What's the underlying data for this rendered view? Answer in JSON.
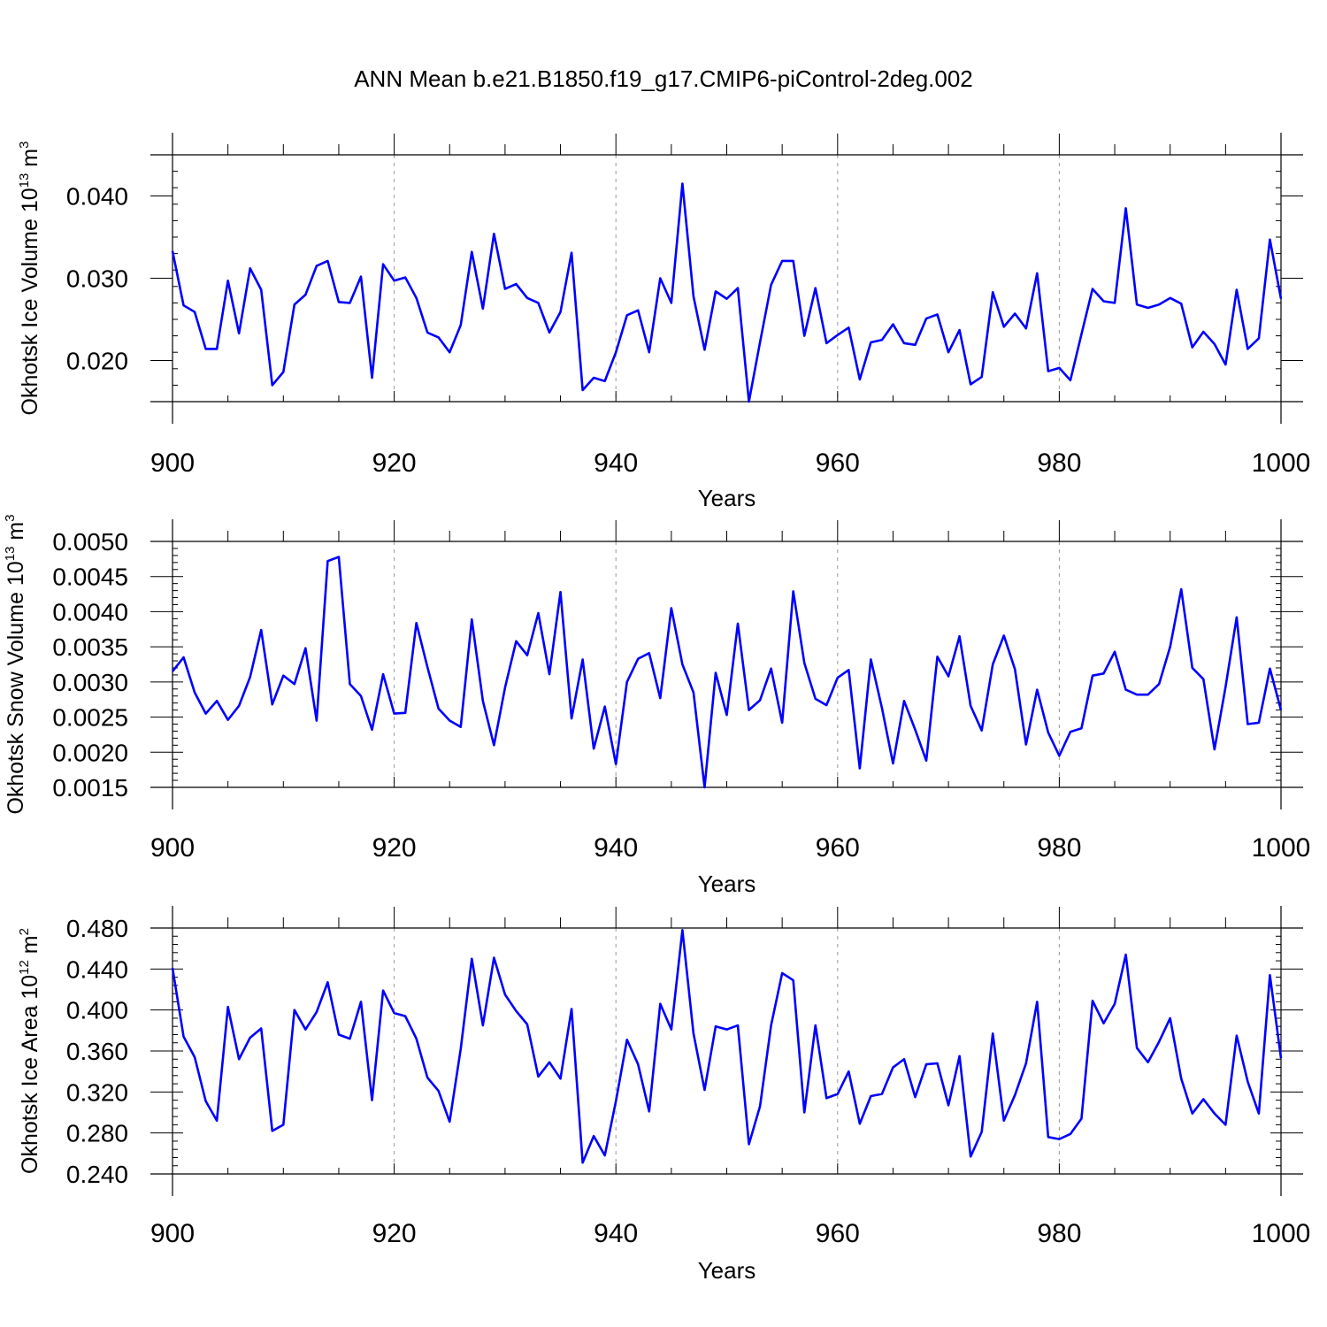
{
  "title": "ANN Mean b.e21.B1850.f19_g17.CMIP6-piControl-2deg.002",
  "colors": {
    "line": "#0000ff",
    "axes": "#000000",
    "grid": "#999999"
  },
  "chart_data": [
    {
      "type": "line",
      "ylabel": {
        "main": "Okhotsk Ice Volume 10",
        "sup": "13",
        "unit": " m",
        "unit_sup": "3"
      },
      "xlabel": "Years",
      "xlim": [
        900,
        1000
      ],
      "ylim": [
        0.015,
        0.045
      ],
      "yticks": [
        0.02,
        0.03,
        0.04
      ],
      "ytick_labels": [
        "0.020",
        "0.030",
        "0.040"
      ],
      "xticks": [
        900,
        920,
        940,
        960,
        980,
        1000
      ],
      "xtick_labels": [
        "900",
        "920",
        "940",
        "960",
        "980",
        "1000"
      ],
      "grid": "vertical dashed at x ticks",
      "series": [
        {
          "color": "#0000ff",
          "x_start": 900,
          "x_step": 1,
          "values": [
            0.0333,
            0.0267,
            0.0259,
            0.0214,
            0.0214,
            0.0297,
            0.0233,
            0.0312,
            0.0286,
            0.017,
            0.0186,
            0.0268,
            0.028,
            0.0315,
            0.0321,
            0.0271,
            0.027,
            0.0302,
            0.0179,
            0.0317,
            0.0297,
            0.0301,
            0.0276,
            0.0234,
            0.0228,
            0.021,
            0.0243,
            0.0332,
            0.0263,
            0.0354,
            0.0287,
            0.0293,
            0.0276,
            0.027,
            0.0234,
            0.0259,
            0.0331,
            0.0164,
            0.0179,
            0.0175,
            0.021,
            0.0255,
            0.0261,
            0.021,
            0.03,
            0.027,
            0.0415,
            0.0278,
            0.0213,
            0.0284,
            0.0275,
            0.0288,
            0.015,
            0.0222,
            0.0292,
            0.0321,
            0.0321,
            0.023,
            0.0288,
            0.0221,
            0.0231,
            0.024,
            0.0177,
            0.0222,
            0.0225,
            0.0244,
            0.0221,
            0.0219,
            0.0251,
            0.0256,
            0.021,
            0.0237,
            0.0171,
            0.018,
            0.0283,
            0.0241,
            0.0257,
            0.0239,
            0.0306,
            0.0187,
            0.0191,
            0.0176,
            0.0232,
            0.0287,
            0.0272,
            0.027,
            0.0385,
            0.0268,
            0.0264,
            0.0268,
            0.0276,
            0.0269,
            0.0216,
            0.0235,
            0.022,
            0.0195,
            0.0286,
            0.0214,
            0.0227,
            0.0347,
            0.0275
          ]
        }
      ]
    },
    {
      "type": "line",
      "ylabel": {
        "main": "Okhotsk Snow Volume 10",
        "sup": "13",
        "unit": " m",
        "unit_sup": "3"
      },
      "xlabel": "Years",
      "xlim": [
        900,
        1000
      ],
      "ylim": [
        0.0015,
        0.005
      ],
      "yticks": [
        0.0015,
        0.002,
        0.0025,
        0.003,
        0.0035,
        0.004,
        0.0045,
        0.005
      ],
      "ytick_labels": [
        "0.0015",
        "0.0020",
        "0.0025",
        "0.0030",
        "0.0035",
        "0.0040",
        "0.0045",
        "0.0050"
      ],
      "xticks": [
        900,
        920,
        940,
        960,
        980,
        1000
      ],
      "xtick_labels": [
        "900",
        "920",
        "940",
        "960",
        "980",
        "1000"
      ],
      "grid": "vertical dashed at x ticks",
      "series": [
        {
          "color": "#0000ff",
          "x_start": 900,
          "x_step": 1,
          "values": [
            0.00315,
            0.00335,
            0.00285,
            0.00255,
            0.00273,
            0.00246,
            0.00266,
            0.00307,
            0.00374,
            0.00268,
            0.00309,
            0.00297,
            0.00348,
            0.00245,
            0.00472,
            0.00478,
            0.00297,
            0.0028,
            0.00232,
            0.00311,
            0.00255,
            0.00256,
            0.00384,
            0.00321,
            0.00262,
            0.00245,
            0.00236,
            0.00389,
            0.00273,
            0.0021,
            0.00292,
            0.00358,
            0.00338,
            0.00398,
            0.00311,
            0.00428,
            0.00248,
            0.00332,
            0.00205,
            0.00265,
            0.00183,
            0.003,
            0.00333,
            0.00341,
            0.00277,
            0.00405,
            0.00325,
            0.00285,
            0.0015,
            0.00313,
            0.00253,
            0.00383,
            0.0026,
            0.00274,
            0.00319,
            0.00242,
            0.00429,
            0.00327,
            0.00276,
            0.00267,
            0.00306,
            0.00317,
            0.00177,
            0.00332,
            0.00263,
            0.00184,
            0.00273,
            0.00232,
            0.00188,
            0.00336,
            0.00308,
            0.00365,
            0.00266,
            0.00231,
            0.00325,
            0.00366,
            0.00318,
            0.00211,
            0.00289,
            0.00228,
            0.00195,
            0.00229,
            0.00234,
            0.00309,
            0.00312,
            0.00343,
            0.00289,
            0.00282,
            0.00282,
            0.00297,
            0.0035,
            0.00432,
            0.0032,
            0.00304,
            0.00204,
            0.00293,
            0.00392,
            0.0024,
            0.00242,
            0.00319,
            0.0026
          ]
        }
      ]
    },
    {
      "type": "line",
      "ylabel": {
        "main": "Okhotsk Ice Area 10",
        "sup": "12",
        "unit": " m",
        "unit_sup": "2"
      },
      "xlabel": "Years",
      "xlim": [
        900,
        1000
      ],
      "ylim": [
        0.24,
        0.48
      ],
      "yticks": [
        0.24,
        0.28,
        0.32,
        0.36,
        0.4,
        0.44,
        0.48
      ],
      "ytick_labels": [
        "0.240",
        "0.280",
        "0.320",
        "0.360",
        "0.400",
        "0.440",
        "0.480"
      ],
      "xticks": [
        900,
        920,
        940,
        960,
        980,
        1000
      ],
      "xtick_labels": [
        "900",
        "920",
        "940",
        "960",
        "980",
        "1000"
      ],
      "grid": "vertical dashed at x ticks",
      "series": [
        {
          "color": "#0000ff",
          "x_start": 900,
          "x_step": 1,
          "values": [
            0.441,
            0.374,
            0.354,
            0.311,
            0.292,
            0.403,
            0.352,
            0.373,
            0.382,
            0.282,
            0.288,
            0.4,
            0.381,
            0.398,
            0.427,
            0.376,
            0.372,
            0.408,
            0.312,
            0.419,
            0.397,
            0.394,
            0.372,
            0.334,
            0.321,
            0.291,
            0.362,
            0.45,
            0.385,
            0.451,
            0.415,
            0.399,
            0.386,
            0.335,
            0.349,
            0.333,
            0.401,
            0.251,
            0.277,
            0.258,
            0.311,
            0.371,
            0.347,
            0.301,
            0.406,
            0.381,
            0.478,
            0.377,
            0.322,
            0.384,
            0.381,
            0.385,
            0.269,
            0.306,
            0.385,
            0.436,
            0.429,
            0.3,
            0.385,
            0.314,
            0.318,
            0.34,
            0.289,
            0.316,
            0.318,
            0.344,
            0.352,
            0.315,
            0.347,
            0.348,
            0.307,
            0.355,
            0.257,
            0.281,
            0.377,
            0.292,
            0.317,
            0.348,
            0.408,
            0.276,
            0.274,
            0.279,
            0.294,
            0.409,
            0.387,
            0.406,
            0.454,
            0.363,
            0.349,
            0.369,
            0.392,
            0.333,
            0.299,
            0.313,
            0.299,
            0.288,
            0.375,
            0.33,
            0.299,
            0.434,
            0.353
          ]
        }
      ]
    }
  ]
}
